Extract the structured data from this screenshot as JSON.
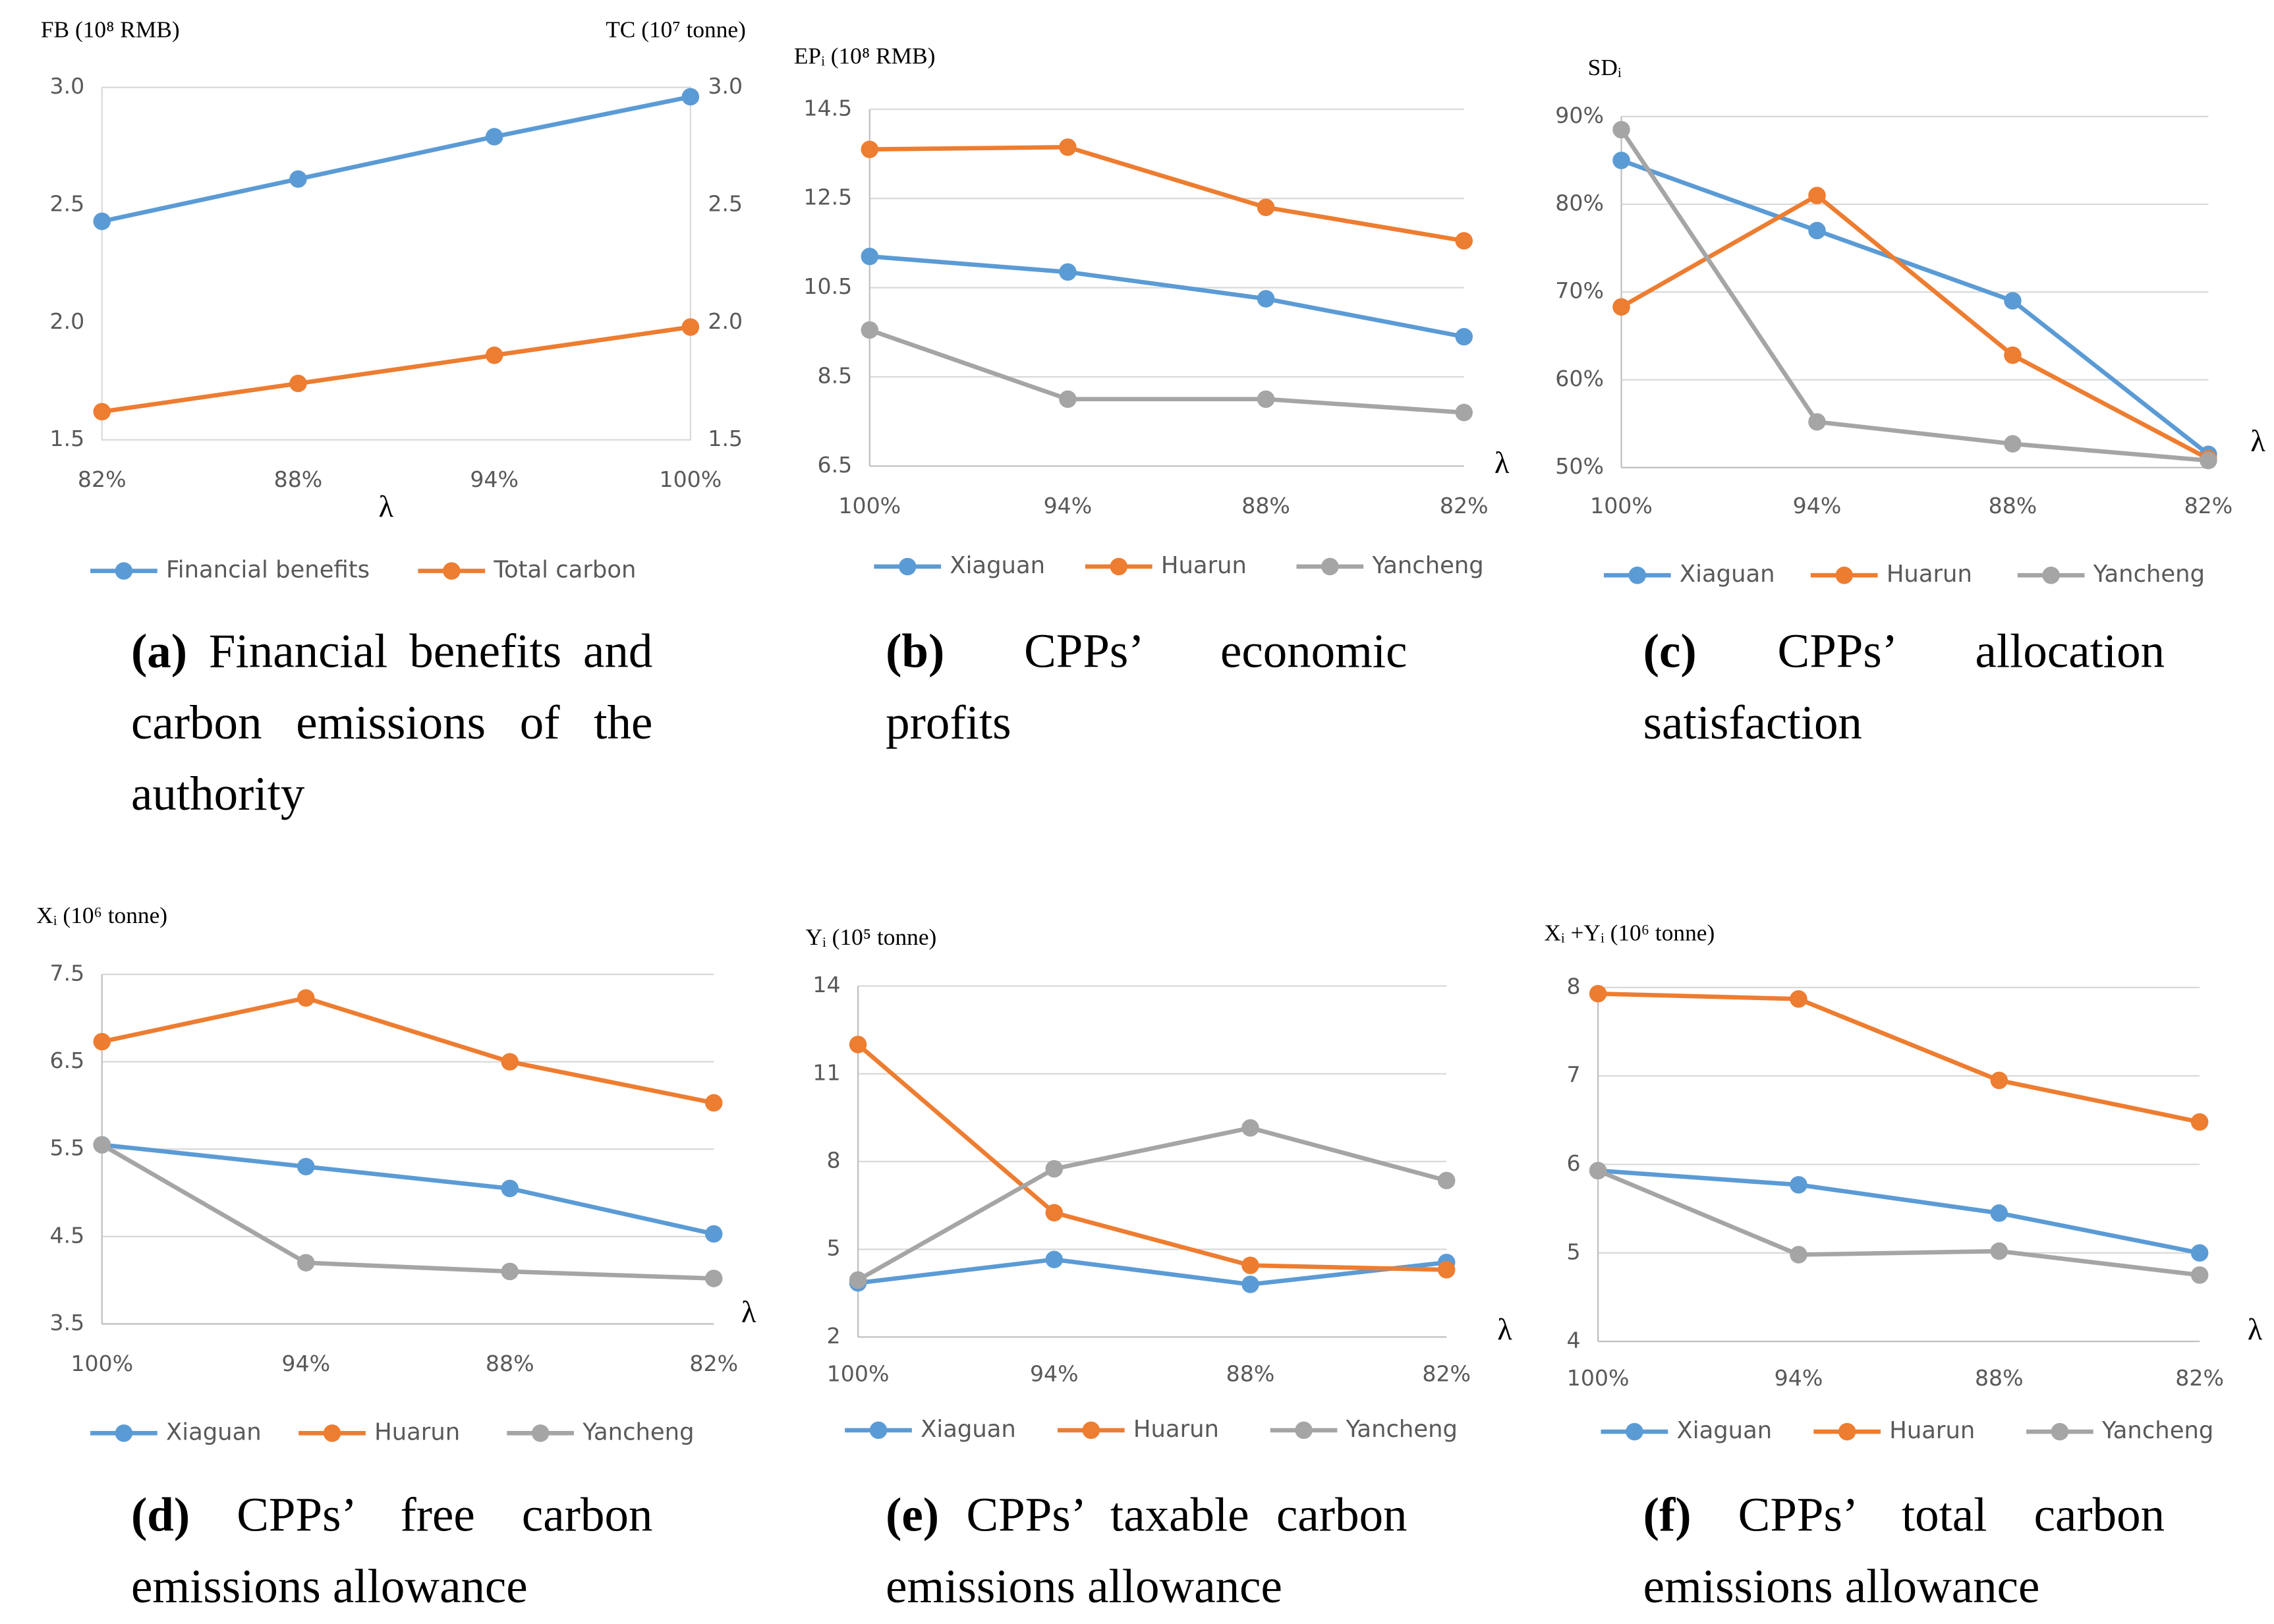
{
  "chart_data": [
    {
      "type": "line",
      "y_label": "FB (10⁸ RMB)",
      "y2_label": "TC (10⁷ tonne)",
      "x_label": "λ",
      "categories": [
        "82%",
        "88%",
        "94%",
        "100%"
      ],
      "series": [
        {
          "name": "Financial benefits",
          "color": "#5b9bd5",
          "values": [
            2.43,
            2.61,
            2.79,
            2.96
          ]
        },
        {
          "name": "Total carbon",
          "color": "#ed7d31",
          "axis": "y2",
          "values": [
            1.62,
            1.74,
            1.86,
            1.98
          ]
        }
      ],
      "ylim": [
        1.5,
        3
      ],
      "yticks": [
        1.5,
        {
          "value": 2,
          "label": "2.0"
        },
        2.5,
        {
          "value": 3,
          "label": "3.0"
        }
      ],
      "y2lim": [
        1.5,
        3
      ],
      "y2ticks": [
        1.5,
        {
          "value": 2,
          "label": "2.0"
        },
        2.5,
        {
          "value": 3,
          "label": "3.0"
        }
      ],
      "grid": false,
      "frame": true,
      "caption_label": "(a)",
      "caption": "Financial benefits and carbon emissions of the authority"
    },
    {
      "type": "line",
      "y_label": "EPᵢ (10⁸ RMB)",
      "x_label": "λ",
      "categories": [
        "100%",
        "94%",
        "88%",
        "82%"
      ],
      "series": [
        {
          "name": "Xiaguan",
          "color": "#5b9bd5",
          "values": [
            11.2,
            10.85,
            10.25,
            9.4
          ]
        },
        {
          "name": "Huarun",
          "color": "#ed7d31",
          "values": [
            13.6,
            13.65,
            12.3,
            11.55
          ]
        },
        {
          "name": "Yancheng",
          "color": "#a5a5a5",
          "values": [
            9.55,
            8.0,
            8.0,
            7.7
          ]
        }
      ],
      "ylim": [
        6.5,
        14.5
      ],
      "yticks": [
        6.5,
        8.5,
        10.5,
        12.5,
        14.5
      ],
      "grid": true,
      "caption_label": "(b)",
      "caption": "CPPs’ economic profits"
    },
    {
      "type": "line",
      "y_label": "SDᵢ",
      "x_label": "λ",
      "categories": [
        "100%",
        "94%",
        "88%",
        "82%"
      ],
      "series": [
        {
          "name": "Xiaguan",
          "color": "#5b9bd5",
          "values": [
            85,
            77,
            69,
            51.5
          ]
        },
        {
          "name": "Huarun",
          "color": "#ed7d31",
          "values": [
            68.3,
            81,
            62.8,
            51
          ]
        },
        {
          "name": "Yancheng",
          "color": "#a5a5a5",
          "values": [
            88.5,
            55.2,
            52.7,
            50.8
          ]
        }
      ],
      "ylim": [
        50,
        90
      ],
      "yticks": [
        {
          "value": 50,
          "label": "50%"
        },
        {
          "value": 60,
          "label": "60%"
        },
        {
          "value": 70,
          "label": "70%"
        },
        {
          "value": 80,
          "label": "80%"
        },
        {
          "value": 90,
          "label": "90%"
        }
      ],
      "grid": true,
      "caption_label": "(c)",
      "caption": "CPPs’ allocation satisfaction"
    },
    {
      "type": "line",
      "y_label": "Xᵢ (10⁶ tonne)",
      "x_label": "λ",
      "categories": [
        "100%",
        "94%",
        "88%",
        "82%"
      ],
      "series": [
        {
          "name": "Xiaguan",
          "color": "#5b9bd5",
          "values": [
            5.55,
            5.3,
            5.05,
            4.53
          ]
        },
        {
          "name": "Huarun",
          "color": "#ed7d31",
          "values": [
            6.73,
            7.23,
            6.5,
            6.03
          ]
        },
        {
          "name": "Yancheng",
          "color": "#a5a5a5",
          "values": [
            5.55,
            4.2,
            4.1,
            4.02
          ]
        }
      ],
      "ylim": [
        3.5,
        7.5
      ],
      "yticks": [
        3.5,
        4.5,
        5.5,
        6.5,
        7.5
      ],
      "grid": true,
      "caption_label": "(d)",
      "caption": "CPPs’ free carbon emissions allowance"
    },
    {
      "type": "line",
      "y_label": "Yᵢ (10⁵ tonne)",
      "x_label": "λ",
      "categories": [
        "100%",
        "94%",
        "88%",
        "82%"
      ],
      "series": [
        {
          "name": "Xiaguan",
          "color": "#5b9bd5",
          "values": [
            3.85,
            4.65,
            3.8,
            4.55
          ]
        },
        {
          "name": "Huarun",
          "color": "#ed7d31",
          "values": [
            12,
            6.25,
            4.45,
            4.3
          ]
        },
        {
          "name": "Yancheng",
          "color": "#a5a5a5",
          "values": [
            3.95,
            7.75,
            9.15,
            7.35
          ]
        }
      ],
      "ylim": [
        2,
        14
      ],
      "yticks": [
        2,
        5,
        8,
        11,
        14
      ],
      "grid": true,
      "caption_label": "(e)",
      "caption": "CPPs’ taxable carbon emissions allowance"
    },
    {
      "type": "line",
      "y_label": "Xᵢ +Yᵢ (10⁶ tonne)",
      "x_label": "λ",
      "categories": [
        "100%",
        "94%",
        "88%",
        "82%"
      ],
      "series": [
        {
          "name": "Xiaguan",
          "color": "#5b9bd5",
          "values": [
            5.93,
            5.77,
            5.45,
            5.0
          ]
        },
        {
          "name": "Huarun",
          "color": "#ed7d31",
          "values": [
            7.93,
            7.87,
            6.95,
            6.48
          ]
        },
        {
          "name": "Yancheng",
          "color": "#a5a5a5",
          "values": [
            5.93,
            4.98,
            5.02,
            4.75
          ]
        }
      ],
      "ylim": [
        4,
        8
      ],
      "yticks": [
        4,
        5,
        6,
        7,
        8
      ],
      "grid": true,
      "caption_label": "(f)",
      "caption": "CPPs’ total carbon emissions allowance"
    }
  ]
}
